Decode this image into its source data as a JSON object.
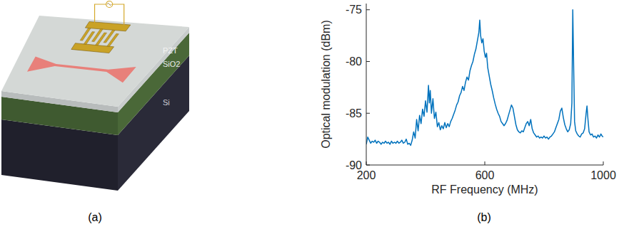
{
  "panel_a": {
    "layers": [
      "PZT",
      "SiO2",
      "Si"
    ],
    "caption": "(a)"
  },
  "chart_data": {
    "type": "line",
    "caption": "(b)",
    "x_label": "RF Frequency (MHz)",
    "y_label": "Optical modulation (dBm)",
    "color": "#0072bd",
    "grid": false,
    "xlim": [
      200,
      1000
    ],
    "xticks": [
      200,
      600,
      1000
    ],
    "ylim": [
      -90,
      -74.4
    ],
    "yticks": [
      -90,
      -85,
      -80,
      -75
    ],
    "x": [
      200,
      205,
      210,
      215,
      220,
      225,
      230,
      235,
      240,
      245,
      250,
      255,
      260,
      265,
      270,
      275,
      280,
      285,
      290,
      295,
      300,
      305,
      310,
      315,
      320,
      325,
      330,
      335,
      340,
      345,
      350,
      355,
      360,
      365,
      370,
      375,
      380,
      385,
      390,
      395,
      400,
      405,
      410,
      413,
      416,
      420,
      425,
      430,
      435,
      440,
      445,
      450,
      455,
      460,
      465,
      470,
      475,
      480,
      485,
      490,
      495,
      500,
      505,
      510,
      515,
      520,
      525,
      530,
      535,
      540,
      545,
      550,
      555,
      560,
      565,
      570,
      575,
      580,
      583,
      586,
      590,
      594,
      598,
      602,
      606,
      610,
      615,
      620,
      625,
      630,
      635,
      640,
      645,
      650,
      655,
      660,
      665,
      670,
      675,
      680,
      685,
      690,
      695,
      700,
      705,
      710,
      715,
      720,
      725,
      730,
      735,
      740,
      745,
      750,
      755,
      760,
      765,
      770,
      775,
      780,
      785,
      790,
      795,
      800,
      805,
      810,
      815,
      820,
      825,
      830,
      835,
      840,
      845,
      850,
      855,
      860,
      865,
      870,
      875,
      880,
      885,
      890,
      894,
      897,
      900,
      903,
      907,
      912,
      917,
      922,
      927,
      932,
      937,
      942,
      945,
      948,
      952,
      957,
      962,
      967,
      972,
      977,
      982,
      987,
      992,
      996,
      1000
    ],
    "values": [
      -88.0,
      -87.3,
      -87.6,
      -87.9,
      -87.7,
      -87.8,
      -87.6,
      -87.9,
      -87.7,
      -87.8,
      -88.0,
      -87.8,
      -87.9,
      -87.7,
      -87.9,
      -87.8,
      -88.0,
      -87.7,
      -87.9,
      -87.8,
      -87.9,
      -87.7,
      -87.9,
      -87.8,
      -87.6,
      -87.9,
      -87.8,
      -87.5,
      -88.0,
      -87.9,
      -88.1,
      -87.6,
      -86.8,
      -87.4,
      -85.6,
      -86.7,
      -85.2,
      -86.0,
      -84.6,
      -85.3,
      -83.8,
      -84.9,
      -82.3,
      -84.0,
      -82.8,
      -85.0,
      -83.6,
      -85.5,
      -84.9,
      -86.3,
      -85.9,
      -86.6,
      -86.2,
      -86.5,
      -85.9,
      -86.4,
      -86.0,
      -86.3,
      -85.8,
      -85.5,
      -85.1,
      -84.7,
      -84.2,
      -83.9,
      -83.3,
      -83.0,
      -82.4,
      -82.8,
      -82.0,
      -81.5,
      -81.8,
      -80.9,
      -80.4,
      -80.0,
      -79.3,
      -78.8,
      -78.0,
      -77.2,
      -76.0,
      -77.5,
      -78.2,
      -77.8,
      -79.0,
      -79.6,
      -79.2,
      -80.6,
      -81.4,
      -82.2,
      -82.8,
      -83.5,
      -84.1,
      -84.6,
      -85.0,
      -85.3,
      -85.8,
      -86.0,
      -86.2,
      -86.0,
      -85.7,
      -85.2,
      -84.7,
      -84.2,
      -84.5,
      -85.3,
      -86.1,
      -86.6,
      -86.8,
      -86.9,
      -86.7,
      -86.8,
      -86.4,
      -86.0,
      -85.8,
      -86.2,
      -85.6,
      -86.5,
      -86.9,
      -87.1,
      -87.3,
      -87.2,
      -87.4,
      -87.3,
      -87.4,
      -87.2,
      -87.4,
      -87.3,
      -87.5,
      -87.3,
      -87.2,
      -87.0,
      -86.8,
      -86.4,
      -86.0,
      -85.6,
      -84.8,
      -84.5,
      -85.4,
      -86.1,
      -86.5,
      -86.8,
      -86.6,
      -86.0,
      -84.0,
      -75.0,
      -80.5,
      -85.8,
      -86.7,
      -87.0,
      -87.2,
      -87.3,
      -87.0,
      -86.9,
      -86.5,
      -85.0,
      -84.3,
      -85.5,
      -86.8,
      -87.1,
      -87.0,
      -87.3,
      -87.2,
      -87.4,
      -87.1,
      -87.3,
      -87.0,
      -87.2,
      -87.3
    ]
  }
}
